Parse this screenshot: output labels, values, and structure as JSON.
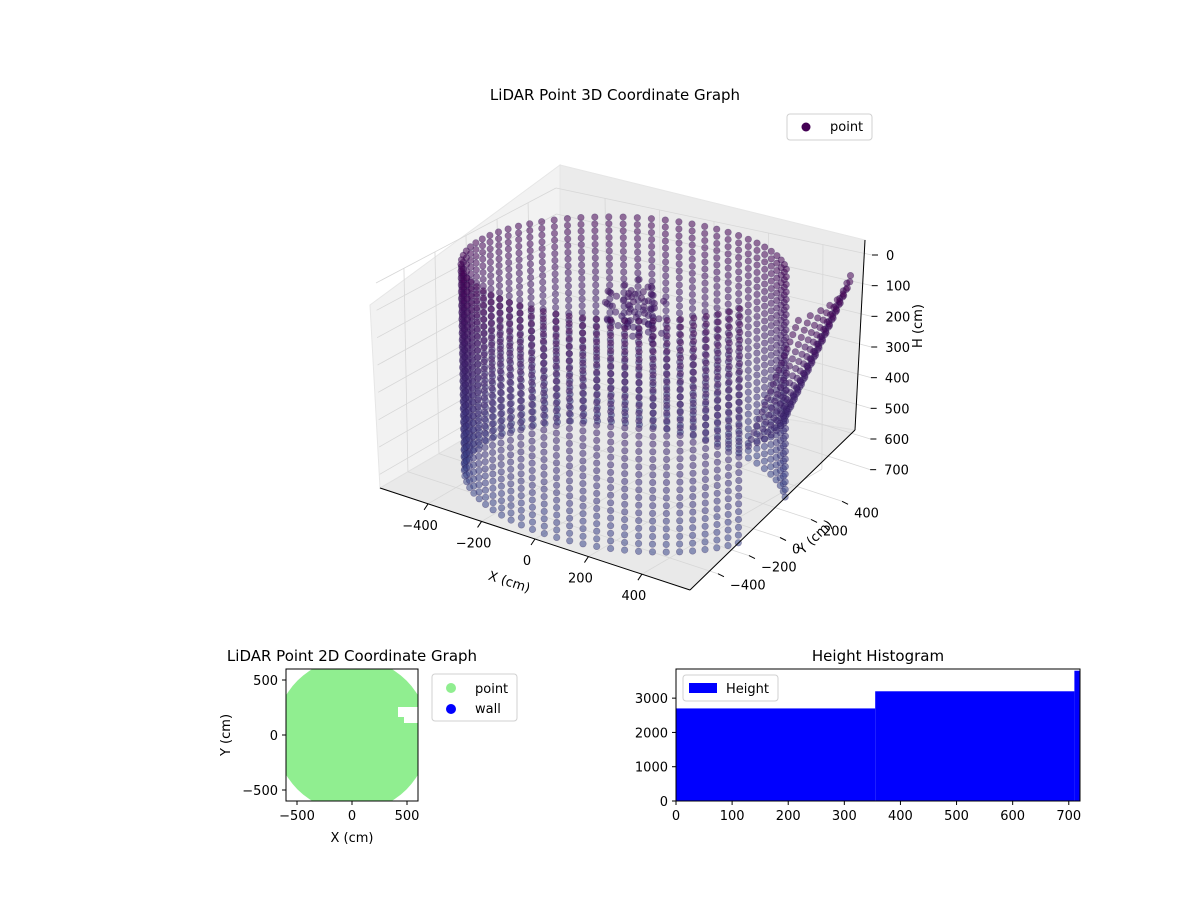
{
  "chart_data": [
    {
      "type": "scatter",
      "projection": "3d",
      "title": "LiDAR Point 3D Coordinate Graph",
      "xlabel": "X (cm)",
      "ylabel": "Y (cm)",
      "zlabel": "H (cm)",
      "xticks": [
        "−400",
        "−200",
        "0",
        "200",
        "400"
      ],
      "yticks": [
        "−400",
        "−200",
        "0",
        "200",
        "400"
      ],
      "zticks": [
        "0",
        "100",
        "200",
        "300",
        "400",
        "500",
        "600",
        "700"
      ],
      "xlim": [
        -580,
        580
      ],
      "ylim": [
        -580,
        580
      ],
      "zlim": [
        0,
        750
      ],
      "z_inverted": true,
      "legend": {
        "labels": [
          "point"
        ],
        "location": "upper-right"
      },
      "series": [
        {
          "name": "point",
          "color": "#440154",
          "shape": "cylindrical wall",
          "radius_cm": 520,
          "height_range_cm": [
            0,
            750
          ],
          "height_step_cm": 25,
          "angular_step_deg": 5,
          "gap_region_deg": [
            -15,
            35
          ]
        }
      ],
      "grid": true
    },
    {
      "type": "scatter",
      "title": "LiDAR Point 2D Coordinate Graph",
      "xlabel": "X (cm)",
      "ylabel": "Y (cm)",
      "xticks": [
        "−500",
        "0",
        "500"
      ],
      "yticks": [
        "−500",
        "0",
        "500"
      ],
      "xlim": [
        -600,
        600
      ],
      "ylim": [
        -600,
        600
      ],
      "legend": {
        "labels": [
          "point",
          "wall"
        ],
        "location": "outside-right"
      },
      "series": [
        {
          "name": "point",
          "color": "#90ee90",
          "shape": "filled disc",
          "radius_cm": 700
        },
        {
          "name": "wall",
          "color": "#0000ff"
        }
      ]
    },
    {
      "type": "bar",
      "title": "Height Histogram",
      "xticks": [
        "0",
        "100",
        "200",
        "300",
        "400",
        "500",
        "600",
        "700"
      ],
      "yticks": [
        "0",
        "1000",
        "2000",
        "3000"
      ],
      "xlim": [
        0,
        720
      ],
      "ylim": [
        0,
        3850
      ],
      "legend": {
        "labels": [
          "Height"
        ],
        "location": "upper-left"
      },
      "series": [
        {
          "name": "Height",
          "color": "#0000ff",
          "bins": [
            {
              "x0": 0,
              "x1": 355,
              "value": 2700
            },
            {
              "x0": 355,
              "x1": 710,
              "value": 3200
            },
            {
              "x0": 710,
              "x1": 720,
              "value": 3800
            }
          ]
        }
      ]
    }
  ]
}
